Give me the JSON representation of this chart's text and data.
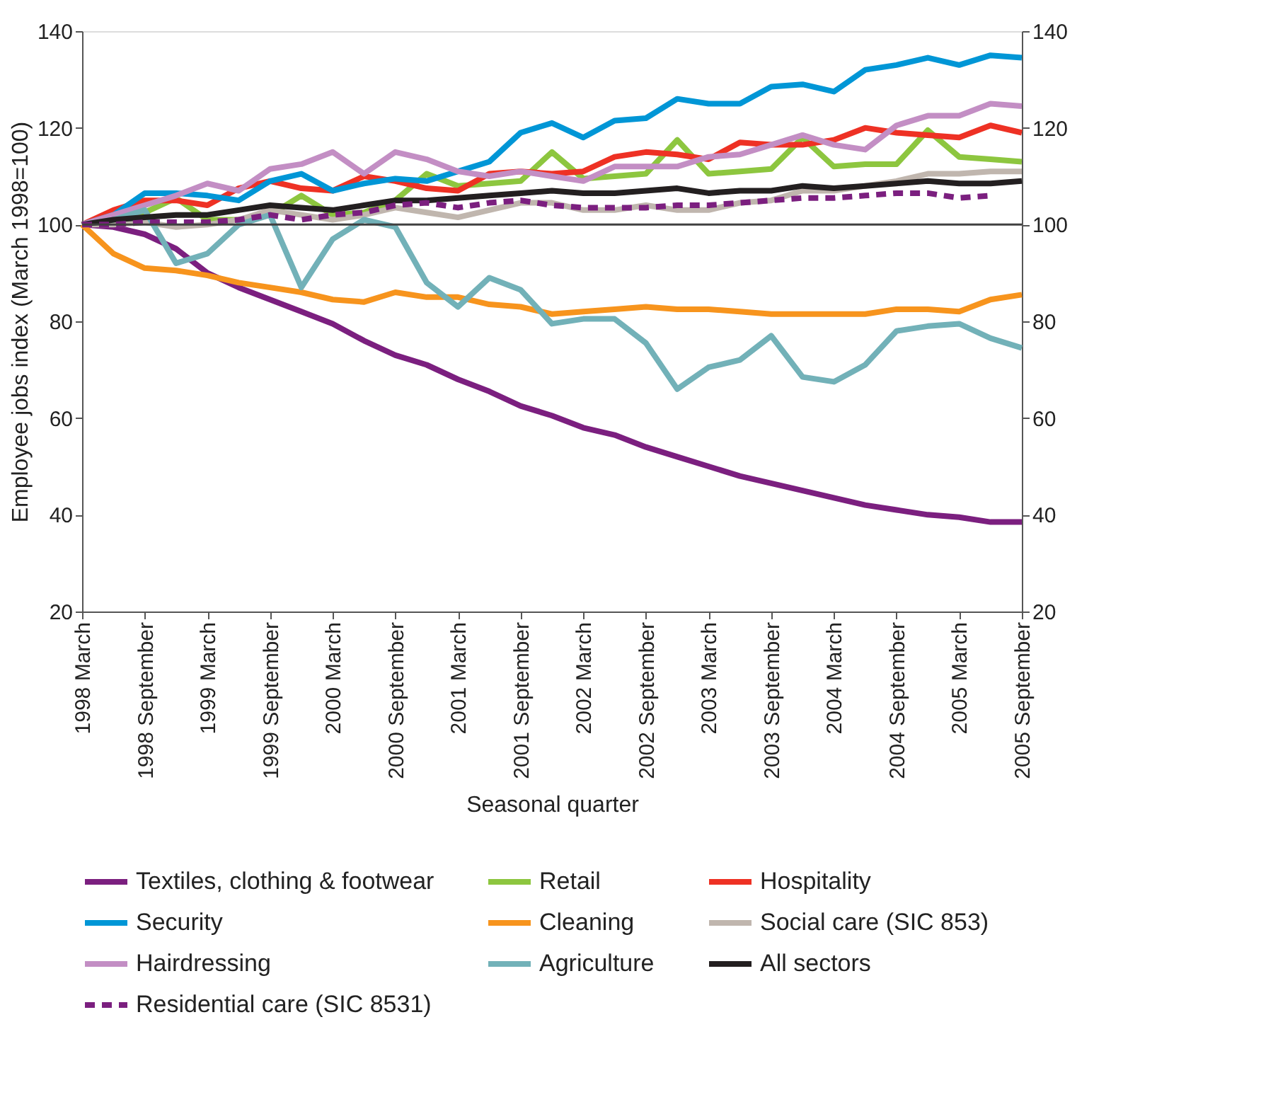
{
  "chart_data": {
    "type": "line",
    "xlabel": "Seasonal quarter",
    "ylabel": "Employee jobs index (March 1998=100)",
    "categories": [
      "1998 March",
      null,
      "1998 September",
      null,
      "1999 March",
      null,
      "1999 September",
      null,
      "2000 March",
      null,
      "2000 September",
      null,
      "2001 March",
      null,
      "2001 September",
      null,
      "2002 March",
      null,
      "2002 September",
      null,
      "2003 March",
      null,
      "2003 September",
      null,
      "2004 March",
      null,
      "2004 September",
      null,
      "2005 March",
      null,
      "2005 September"
    ],
    "ylim": [
      20,
      140
    ],
    "yticks": [
      20,
      40,
      60,
      80,
      100,
      120,
      140
    ],
    "y2lim": [
      20,
      140
    ],
    "y2ticks": [
      20,
      40,
      60,
      80,
      100,
      120,
      140
    ],
    "grid": false,
    "legend": "bottom",
    "marker": "none",
    "ref_lines": [
      {
        "axis": "y",
        "value": 100,
        "color": "#404040"
      }
    ],
    "series": [
      {
        "name": "Textiles, clothing & footwear",
        "color": "#7b1f7f",
        "values": [
          100,
          99.5,
          98,
          95,
          90,
          87,
          84.5,
          82,
          79.5,
          76,
          73,
          71,
          68,
          65.5,
          62.5,
          60.5,
          58,
          56.5,
          54,
          52,
          50,
          48,
          46.5,
          45,
          43.5,
          42,
          41,
          40,
          39.5,
          38.5,
          38.5
        ]
      },
      {
        "name": "Retail",
        "color": "#8dc63f",
        "values": [
          100,
          101,
          102.5,
          105.5,
          101,
          101,
          102,
          106,
          102,
          102.5,
          105,
          110.5,
          108,
          108.5,
          109,
          115,
          109.5,
          110,
          110.5,
          117.5,
          110.5,
          111,
          111.5,
          118,
          112,
          112.5,
          112.5,
          119.5,
          114,
          113.5,
          113
        ]
      },
      {
        "name": "Hospitality",
        "color": "#ee3124",
        "values": [
          100,
          103,
          105,
          105,
          104,
          107.5,
          109,
          107.5,
          107,
          110,
          109,
          107.5,
          107,
          110.5,
          111,
          110.5,
          111,
          114,
          115,
          114.5,
          113.5,
          117,
          116.5,
          116.5,
          117.5,
          120,
          119,
          118.5,
          118,
          120.5,
          119
        ]
      },
      {
        "name": "Security",
        "color": "#0096d6",
        "values": [
          100,
          102,
          106.5,
          106.5,
          106,
          105,
          109,
          110.5,
          107,
          108.5,
          109.5,
          109,
          111,
          113,
          119,
          121,
          118,
          121.5,
          122,
          126,
          125,
          125,
          128.5,
          129,
          127.5,
          132,
          133,
          134.5,
          133,
          135,
          134.5
        ]
      },
      {
        "name": "Cleaning",
        "color": "#f7941d",
        "values": [
          100,
          94,
          91,
          90.5,
          89.5,
          88,
          87,
          86,
          84.5,
          84,
          86,
          85,
          85,
          83.5,
          83,
          81.5,
          82,
          82.5,
          83,
          82.5,
          82.5,
          82,
          81.5,
          81.5,
          81.5,
          81.5,
          82.5,
          82.5,
          82,
          84.5,
          85.5
        ]
      },
      {
        "name": "Social care (SIC 853)",
        "color": "#c0b6ae",
        "values": [
          100,
          100,
          100.5,
          99.5,
          100,
          101,
          103,
          102,
          101,
          102,
          103.5,
          102.5,
          101.5,
          103,
          104.5,
          104.5,
          103,
          103,
          104,
          103,
          103,
          104.5,
          105,
          107,
          107,
          108,
          109,
          110.5,
          110.5,
          111,
          111
        ]
      },
      {
        "name": "Hairdressing",
        "color": "#c38ec4",
        "values": [
          100,
          102,
          104,
          106,
          108.5,
          107,
          111.5,
          112.5,
          115,
          110.5,
          115,
          113.5,
          111,
          110,
          111,
          110,
          109,
          112,
          112,
          112,
          114,
          114.5,
          116.5,
          118.5,
          116.5,
          115.5,
          120.5,
          122.5,
          122.5,
          125,
          124.5
        ]
      },
      {
        "name": "Agriculture",
        "color": "#72b1b8",
        "values": [
          100,
          101,
          103,
          92,
          94,
          100,
          102,
          87,
          97,
          101,
          99.5,
          88,
          83,
          89,
          86.5,
          79.5,
          80.5,
          80.5,
          75.5,
          66,
          70.5,
          72,
          77,
          68.5,
          67.5,
          71,
          78,
          79,
          79.5,
          76.5,
          74.5
        ]
      },
      {
        "name": "All sectors",
        "color": "#231f20",
        "values": [
          100,
          101,
          101.5,
          102,
          102,
          103,
          104,
          103.5,
          103,
          104,
          105,
          105,
          105.5,
          106,
          106.5,
          107,
          106.5,
          106.5,
          107,
          107.5,
          106.5,
          107,
          107,
          108,
          107.5,
          108,
          108.5,
          109,
          108.5,
          108.5,
          109
        ]
      },
      {
        "name": "Residential care (SIC 8531)",
        "color": "#7b1f7f",
        "line_style": "dashed",
        "values": [
          100,
          100,
          100.5,
          100.5,
          100.5,
          101,
          102,
          101,
          102,
          102.5,
          104,
          104.5,
          103.5,
          104.5,
          105,
          104,
          103.5,
          103.5,
          103.5,
          104,
          104,
          104.5,
          105,
          105.5,
          105.5,
          106,
          106.5,
          106.5,
          105.5,
          106,
          null
        ]
      }
    ]
  }
}
